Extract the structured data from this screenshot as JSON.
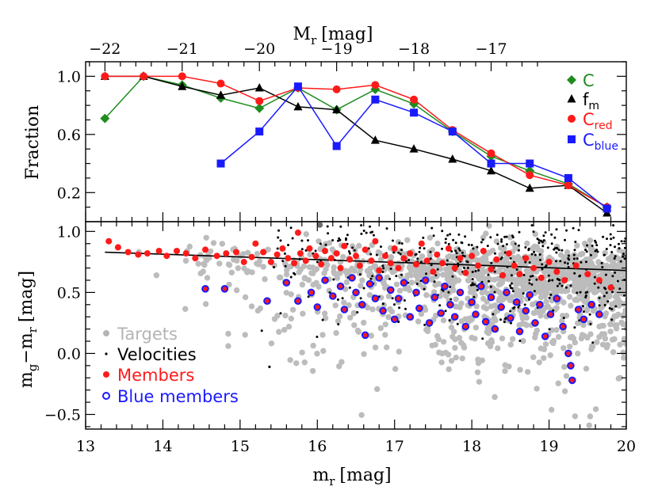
{
  "chart_data": [
    {
      "type": "line",
      "panel": "top",
      "ylabel": "Fraction",
      "top_axis_label": "M",
      "top_axis_label_sub": "r",
      "top_axis_label_unit": "[mag]",
      "xlim": [
        13,
        20
      ],
      "ylim": [
        0.0,
        1.1
      ],
      "yticks": [
        0.2,
        0.6,
        1.0
      ],
      "ytick_labels": [
        "0.2",
        "0.6",
        "1.0"
      ],
      "top_ticks": [
        -22,
        -21,
        -20,
        -19,
        -18,
        -17
      ],
      "top_tick_labels": [
        "−22",
        "−21",
        "−20",
        "−19",
        "−18",
        "−17"
      ],
      "top_axis_offset": -35.25,
      "legend_position": "top-right",
      "series": [
        {
          "name": "C",
          "sub": "",
          "color": "#1e8c1e",
          "marker": "diamond",
          "x": [
            13.25,
            13.75,
            14.25,
            14.75,
            15.25,
            15.75,
            16.25,
            16.75,
            17.25,
            17.75,
            18.25,
            18.75,
            19.25,
            19.75
          ],
          "y": [
            0.71,
            1.0,
            0.94,
            0.85,
            0.78,
            0.92,
            0.77,
            0.91,
            0.81,
            0.62,
            0.45,
            0.35,
            0.26,
            0.1
          ]
        },
        {
          "name": "f",
          "sub": "m",
          "color": "#000000",
          "marker": "triangle",
          "x": [
            13.25,
            13.75,
            14.25,
            14.75,
            15.25,
            15.75,
            16.25,
            16.75,
            17.25,
            17.75,
            18.25,
            18.75,
            19.25,
            19.75
          ],
          "y": [
            1.0,
            1.0,
            0.93,
            0.87,
            0.92,
            0.79,
            0.77,
            0.56,
            0.5,
            0.43,
            0.35,
            0.23,
            0.25,
            0.06
          ]
        },
        {
          "name": "C",
          "sub": "red",
          "color": "#ff1a1a",
          "marker": "circle",
          "x": [
            13.25,
            13.75,
            14.25,
            14.75,
            15.25,
            15.75,
            16.25,
            16.75,
            17.25,
            17.75,
            18.25,
            18.75,
            19.25,
            19.75
          ],
          "y": [
            1.0,
            1.0,
            1.0,
            0.95,
            0.83,
            0.92,
            0.91,
            0.94,
            0.84,
            0.63,
            0.47,
            0.32,
            0.25,
            0.1
          ]
        },
        {
          "name": "C",
          "sub": "blue",
          "color": "#1a1aff",
          "marker": "square",
          "x": [
            14.75,
            15.25,
            15.75,
            16.25,
            16.75,
            17.25,
            17.75,
            18.25,
            18.75,
            19.25,
            19.75
          ],
          "y": [
            0.4,
            0.62,
            0.93,
            0.52,
            0.84,
            0.75,
            0.62,
            0.4,
            0.4,
            0.3,
            0.09
          ]
        }
      ]
    },
    {
      "type": "scatter",
      "panel": "bottom",
      "xlabel": "m",
      "xlabel_sub": "r",
      "xlabel_unit": "[mag]",
      "ylabel": "m",
      "ylabel_sub1": "g",
      "ylabel_mid": "−m",
      "ylabel_sub2": "r",
      "ylabel_unit": "[mag]",
      "xlim": [
        13,
        20
      ],
      "ylim": [
        -0.62,
        1.08
      ],
      "xticks": [
        13,
        14,
        15,
        16,
        17,
        18,
        19,
        20
      ],
      "xtick_labels": [
        "13",
        "14",
        "15",
        "16",
        "17",
        "18",
        "19",
        "20"
      ],
      "yticks": [
        -0.5,
        0.0,
        0.5,
        1.0
      ],
      "ytick_labels": [
        "−0.5",
        "0.0",
        "0.5",
        "1.0"
      ],
      "red_sequence": {
        "x": [
          13.25,
          20.0
        ],
        "y": [
          0.83,
          0.68
        ]
      },
      "legend_position": "bottom-left",
      "legend": [
        {
          "label": "Targets",
          "color": "#b4b4b4",
          "marker": "filled-circle"
        },
        {
          "label": "Velocities",
          "color": "#000000",
          "marker": "dot"
        },
        {
          "label": "Members",
          "color": "#ff1a1a",
          "marker": "filled-circle"
        },
        {
          "label": "Blue members",
          "color": "#1a1aff",
          "marker": "ring"
        }
      ],
      "members_red": [
        [
          13.3,
          0.92
        ],
        [
          13.42,
          0.87
        ],
        [
          13.55,
          0.83
        ],
        [
          13.68,
          0.81
        ],
        [
          13.8,
          0.82
        ],
        [
          13.95,
          0.84
        ],
        [
          14.05,
          0.8
        ],
        [
          14.18,
          0.84
        ],
        [
          14.3,
          0.82
        ],
        [
          14.42,
          0.78
        ],
        [
          14.55,
          0.85
        ],
        [
          14.7,
          0.8
        ],
        [
          14.82,
          0.82
        ],
        [
          14.95,
          0.83
        ],
        [
          15.05,
          0.75
        ],
        [
          15.15,
          0.79
        ],
        [
          15.2,
          0.9
        ],
        [
          15.3,
          0.83
        ],
        [
          15.4,
          0.75
        ],
        [
          15.48,
          0.81
        ],
        [
          15.55,
          0.86
        ],
        [
          15.62,
          0.78
        ],
        [
          15.7,
          0.74
        ],
        [
          15.75,
          0.99
        ],
        [
          15.78,
          0.82
        ],
        [
          15.85,
          0.76
        ],
        [
          15.9,
          0.86
        ],
        [
          15.98,
          0.8
        ],
        [
          16.05,
          0.73
        ],
        [
          16.1,
          0.84
        ],
        [
          16.18,
          0.78
        ],
        [
          16.25,
          0.82
        ],
        [
          16.3,
          0.7
        ],
        [
          16.35,
          0.88
        ],
        [
          16.42,
          0.77
        ],
        [
          16.5,
          0.8
        ],
        [
          16.55,
          0.72
        ],
        [
          16.62,
          0.85
        ],
        [
          16.7,
          0.76
        ],
        [
          16.75,
          0.92
        ],
        [
          16.8,
          0.68
        ],
        [
          16.88,
          0.8
        ],
        [
          16.95,
          0.74
        ],
        [
          17.0,
          0.86
        ],
        [
          17.05,
          0.7
        ],
        [
          17.12,
          0.78
        ],
        [
          17.2,
          0.82
        ],
        [
          17.28,
          0.73
        ],
        [
          17.35,
          0.9
        ],
        [
          17.42,
          0.76
        ],
        [
          17.5,
          0.67
        ],
        [
          17.55,
          0.81
        ],
        [
          17.62,
          0.74
        ],
        [
          17.7,
          0.86
        ],
        [
          17.78,
          0.7
        ],
        [
          17.85,
          0.78
        ],
        [
          17.92,
          0.66
        ],
        [
          18.0,
          0.8
        ],
        [
          18.08,
          0.72
        ],
        [
          18.15,
          0.84
        ],
        [
          18.25,
          0.69
        ],
        [
          18.32,
          0.77
        ],
        [
          18.4,
          0.64
        ],
        [
          18.48,
          0.82
        ],
        [
          18.55,
          0.72
        ],
        [
          18.62,
          0.65
        ],
        [
          18.7,
          0.78
        ],
        [
          18.8,
          0.7
        ],
        [
          18.9,
          0.62
        ],
        [
          19.0,
          0.75
        ],
        [
          19.1,
          0.67
        ],
        [
          19.2,
          0.6
        ],
        [
          19.35,
          0.72
        ],
        [
          19.5,
          0.65
        ],
        [
          19.65,
          0.6
        ],
        [
          19.8,
          0.54
        ]
      ],
      "members_blue": [
        [
          14.55,
          0.53
        ],
        [
          14.8,
          0.53
        ],
        [
          15.35,
          0.43
        ],
        [
          15.6,
          0.58
        ],
        [
          15.75,
          0.43
        ],
        [
          15.92,
          0.5
        ],
        [
          16.0,
          0.38
        ],
        [
          16.1,
          0.6
        ],
        [
          16.2,
          0.47
        ],
        [
          16.3,
          0.55
        ],
        [
          16.35,
          0.36
        ],
        [
          16.45,
          0.62
        ],
        [
          16.5,
          0.5
        ],
        [
          16.58,
          0.4
        ],
        [
          16.62,
          0.15
        ],
        [
          16.68,
          0.57
        ],
        [
          16.75,
          0.45
        ],
        [
          16.8,
          0.62
        ],
        [
          16.85,
          0.35
        ],
        [
          16.95,
          0.52
        ],
        [
          17.0,
          0.28
        ],
        [
          17.05,
          0.45
        ],
        [
          17.12,
          0.58
        ],
        [
          17.2,
          0.3
        ],
        [
          17.28,
          0.5
        ],
        [
          17.32,
          0.37
        ],
        [
          17.4,
          0.6
        ],
        [
          17.45,
          0.25
        ],
        [
          17.52,
          0.46
        ],
        [
          17.6,
          0.33
        ],
        [
          17.65,
          0.55
        ],
        [
          17.72,
          0.4
        ],
        [
          17.78,
          0.3
        ],
        [
          17.85,
          0.5
        ],
        [
          17.92,
          0.22
        ],
        [
          18.0,
          0.42
        ],
        [
          18.05,
          0.32
        ],
        [
          18.12,
          0.55
        ],
        [
          18.18,
          0.26
        ],
        [
          18.25,
          0.46
        ],
        [
          18.3,
          0.2
        ],
        [
          18.38,
          0.38
        ],
        [
          18.45,
          0.5
        ],
        [
          18.5,
          0.29
        ],
        [
          18.58,
          0.42
        ],
        [
          18.62,
          0.18
        ],
        [
          18.7,
          0.35
        ],
        [
          18.75,
          0.48
        ],
        [
          18.82,
          0.25
        ],
        [
          18.88,
          0.4
        ],
        [
          18.95,
          0.14
        ],
        [
          19.02,
          0.32
        ],
        [
          19.1,
          0.45
        ],
        [
          19.18,
          0.22
        ],
        [
          19.25,
          0.0
        ],
        [
          19.28,
          -0.1
        ],
        [
          19.3,
          -0.22
        ],
        [
          19.38,
          0.36
        ],
        [
          19.45,
          0.28
        ],
        [
          19.55,
          0.4
        ],
        [
          19.65,
          0.32
        ]
      ]
    }
  ]
}
